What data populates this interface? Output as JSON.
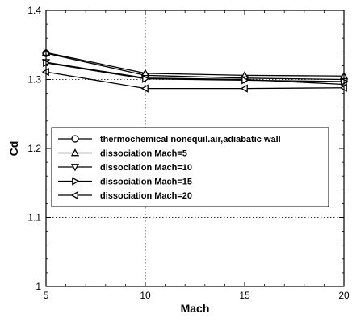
{
  "chart_data": {
    "type": "line",
    "title": "",
    "xlabel": "Mach",
    "ylabel": "Cd",
    "xlim": [
      5,
      20
    ],
    "ylim": [
      1.0,
      1.4
    ],
    "x_ticks": [
      "5",
      "10",
      "15",
      "20"
    ],
    "y_ticks": [
      "1",
      "1.1",
      "1.2",
      "1.3",
      "1.4"
    ],
    "x_tick_values": [
      5,
      10,
      15,
      20
    ],
    "y_tick_values": [
      1.0,
      1.1,
      1.2,
      1.3,
      1.4
    ],
    "grid": "dotted reference lines at Cd=1.1, Cd=1.3 and Mach=10",
    "legend_position": "middle-left",
    "x": [
      5,
      10,
      15,
      20
    ],
    "series": [
      {
        "name": "thermochemical nonequil.air,adiabatic wall",
        "marker": "circle",
        "values": [
          1.338,
          1.306,
          1.302,
          1.3
        ]
      },
      {
        "name": "dissociation Mach=5",
        "marker": "triangle-up",
        "values": [
          1.339,
          1.309,
          1.306,
          1.305
        ]
      },
      {
        "name": "dissociation Mach=10",
        "marker": "triangle-down",
        "values": [
          1.325,
          1.302,
          1.3,
          1.293
        ]
      },
      {
        "name": "dissociation Mach=15",
        "marker": "triangle-right",
        "values": [
          1.324,
          1.301,
          1.299,
          1.297
        ]
      },
      {
        "name": "dissociation Mach=20",
        "marker": "triangle-left",
        "values": [
          1.311,
          1.287,
          1.287,
          1.288
        ]
      }
    ],
    "colors": {
      "line": "#000000",
      "grid": "#000000",
      "background": "#ffffff"
    }
  }
}
